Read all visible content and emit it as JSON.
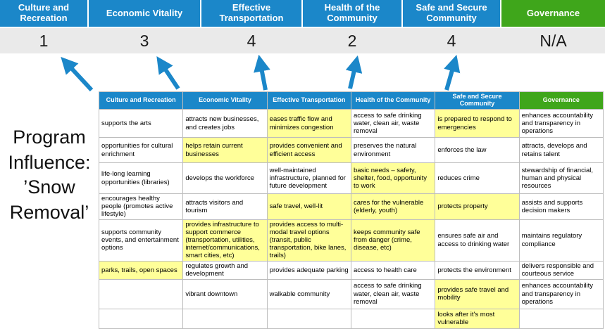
{
  "colors": {
    "header_blue": "#1b87c9",
    "governance_green": "#3fa61b",
    "highlight_yellow": "#ffff99",
    "score_band_gray": "#eaeaea"
  },
  "title": "Program Influence: ’Snow Removal’",
  "summary": {
    "columns": [
      {
        "label": "Culture and Recreation",
        "score": "1"
      },
      {
        "label": "Economic Vitality",
        "score": "3"
      },
      {
        "label": "Effective Transportation",
        "score": "4"
      },
      {
        "label": "Health of the Community",
        "score": "2"
      },
      {
        "label": "Safe and Secure Community",
        "score": "4"
      },
      {
        "label": "Governance",
        "score": "N/A"
      }
    ]
  },
  "matrix": {
    "headers": [
      "Culture and Recreation",
      "Economic Vitality",
      "Effective Transportation",
      "Health of the Community",
      "Safe and Secure Community",
      "Governance"
    ],
    "rows": [
      [
        {
          "text": "supports the arts",
          "highlight": false
        },
        {
          "text": "attracts new businesses, and creates jobs",
          "highlight": false
        },
        {
          "text": "eases traffic flow and minimizes congestion",
          "highlight": true
        },
        {
          "text": "access to safe drinking water, clean air, waste removal",
          "highlight": false
        },
        {
          "text": "is prepared to respond to emergencies",
          "highlight": true
        },
        {
          "text": "enhances accountability and transparency in operations",
          "highlight": false
        }
      ],
      [
        {
          "text": "opportunities for cultural enrichment",
          "highlight": false
        },
        {
          "text": "helps retain current businesses",
          "highlight": true
        },
        {
          "text": "provides convenient and efficient access",
          "highlight": true
        },
        {
          "text": "preserves the natural environment",
          "highlight": false
        },
        {
          "text": "enforces the law",
          "highlight": false
        },
        {
          "text": "attracts, develops and retains talent",
          "highlight": false
        }
      ],
      [
        {
          "text": "life-long learning opportunities (libraries)",
          "highlight": false
        },
        {
          "text": "develops the workforce",
          "highlight": false
        },
        {
          "text": "well-maintained infrastructure, planned for future development",
          "highlight": false
        },
        {
          "text": "basic needs – safety, shelter, food, opportunity to work",
          "highlight": true
        },
        {
          "text": "reduces crime",
          "highlight": false
        },
        {
          "text": "stewardship of financial, human and physical resources",
          "highlight": false
        }
      ],
      [
        {
          "text": "encourages healthy people (promotes active lifestyle)",
          "highlight": false
        },
        {
          "text": "attracts visitors and tourism",
          "highlight": false
        },
        {
          "text": "safe travel, well-lit",
          "highlight": true
        },
        {
          "text": "cares for the vulnerable (elderly, youth)",
          "highlight": true
        },
        {
          "text": "protects property",
          "highlight": true
        },
        {
          "text": "assists and supports decision makers",
          "highlight": false
        }
      ],
      [
        {
          "text": "supports community events, and entertainment options",
          "highlight": false
        },
        {
          "text": "provides infrastructure to support commerce (transportation, utilities, internet/communications, smart cities, etc)",
          "highlight": true
        },
        {
          "text": "provides access to multi-modal travel options (transit, public transportation, bike lanes, trails)",
          "highlight": true
        },
        {
          "text": "keeps community safe from danger (crime, disease, etc)",
          "highlight": true
        },
        {
          "text": "ensures safe air and access to drinking water",
          "highlight": false
        },
        {
          "text": "maintains regulatory compliance",
          "highlight": false
        }
      ],
      [
        {
          "text": "parks, trails, open spaces",
          "highlight": true
        },
        {
          "text": "regulates growth and development",
          "highlight": false
        },
        {
          "text": "provides adequate parking",
          "highlight": false
        },
        {
          "text": "access to health care",
          "highlight": false
        },
        {
          "text": "protects the environment",
          "highlight": false
        },
        {
          "text": "delivers responsible and courteous service",
          "highlight": false
        }
      ],
      [
        {
          "text": "",
          "highlight": false
        },
        {
          "text": "vibrant downtown",
          "highlight": false
        },
        {
          "text": "walkable community",
          "highlight": false
        },
        {
          "text": "access to safe drinking water, clean air, waste removal",
          "highlight": false
        },
        {
          "text": "provides safe travel and mobility",
          "highlight": true
        },
        {
          "text": "enhances accountability and transparency in operations",
          "highlight": false
        }
      ],
      [
        {
          "text": "",
          "highlight": false
        },
        {
          "text": "",
          "highlight": false
        },
        {
          "text": "",
          "highlight": false
        },
        {
          "text": "",
          "highlight": false
        },
        {
          "text": "looks after it's most vulnerable",
          "highlight": true
        },
        {
          "text": "",
          "highlight": false
        }
      ]
    ]
  }
}
